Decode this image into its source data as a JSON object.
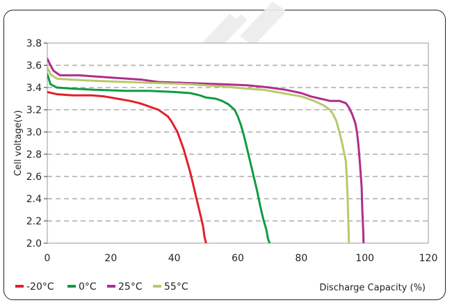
{
  "chart_data": {
    "type": "line",
    "title": "",
    "xlabel": "Discharge Capacity (%)",
    "ylabel": "Cell voltage(v)",
    "xlim": [
      0,
      120
    ],
    "ylim": [
      2.0,
      3.8
    ],
    "x_ticks": [
      "0",
      "20",
      "40",
      "60",
      "80",
      "100",
      "120"
    ],
    "y_ticks": [
      "2.0",
      "2.2",
      "2.4",
      "2.6",
      "2.8",
      "3.0",
      "3.2",
      "3.4",
      "3.6",
      "3.8"
    ],
    "grid": "horizontal-dashed",
    "legend_position": "bottom-left",
    "series": [
      {
        "name": "-20°C",
        "color": "#e0202a",
        "points": [
          [
            0,
            3.36
          ],
          [
            3,
            3.34
          ],
          [
            8,
            3.33
          ],
          [
            14,
            3.33
          ],
          [
            18,
            3.32
          ],
          [
            22,
            3.3
          ],
          [
            26,
            3.28
          ],
          [
            29,
            3.26
          ],
          [
            31,
            3.24
          ],
          [
            33,
            3.22
          ],
          [
            35,
            3.2
          ],
          [
            36,
            3.18
          ],
          [
            38,
            3.14
          ],
          [
            39,
            3.1
          ],
          [
            40,
            3.05
          ],
          [
            41,
            3.0
          ],
          [
            42,
            2.92
          ],
          [
            43,
            2.84
          ],
          [
            44,
            2.74
          ],
          [
            45,
            2.64
          ],
          [
            46,
            2.52
          ],
          [
            47,
            2.4
          ],
          [
            48,
            2.28
          ],
          [
            49,
            2.16
          ],
          [
            49.5,
            2.06
          ],
          [
            50,
            2.0
          ]
        ]
      },
      {
        "name": "0°C",
        "color": "#0f9a45",
        "points": [
          [
            0,
            3.52
          ],
          [
            1,
            3.43
          ],
          [
            3,
            3.4
          ],
          [
            8,
            3.39
          ],
          [
            15,
            3.38
          ],
          [
            25,
            3.37
          ],
          [
            32,
            3.37
          ],
          [
            40,
            3.36
          ],
          [
            45,
            3.35
          ],
          [
            48,
            3.33
          ],
          [
            50,
            3.31
          ],
          [
            53,
            3.3
          ],
          [
            55,
            3.28
          ],
          [
            57,
            3.25
          ],
          [
            59,
            3.2
          ],
          [
            60,
            3.14
          ],
          [
            61,
            3.06
          ],
          [
            62,
            2.96
          ],
          [
            63,
            2.84
          ],
          [
            64,
            2.72
          ],
          [
            65,
            2.6
          ],
          [
            66,
            2.48
          ],
          [
            67,
            2.34
          ],
          [
            68,
            2.22
          ],
          [
            69,
            2.12
          ],
          [
            69.5,
            2.04
          ],
          [
            70,
            2.0
          ]
        ]
      },
      {
        "name": "25°C",
        "color": "#b02c8c",
        "points": [
          [
            0,
            3.66
          ],
          [
            1,
            3.6
          ],
          [
            2,
            3.55
          ],
          [
            4,
            3.51
          ],
          [
            10,
            3.51
          ],
          [
            20,
            3.49
          ],
          [
            30,
            3.47
          ],
          [
            35,
            3.45
          ],
          [
            45,
            3.44
          ],
          [
            55,
            3.43
          ],
          [
            63,
            3.42
          ],
          [
            70,
            3.4
          ],
          [
            75,
            3.38
          ],
          [
            80,
            3.35
          ],
          [
            83,
            3.32
          ],
          [
            86,
            3.3
          ],
          [
            89,
            3.28
          ],
          [
            92,
            3.28
          ],
          [
            94,
            3.26
          ],
          [
            95,
            3.22
          ],
          [
            96,
            3.16
          ],
          [
            97,
            3.08
          ],
          [
            97.5,
            3.0
          ],
          [
            98,
            2.88
          ],
          [
            98.5,
            2.7
          ],
          [
            99,
            2.5
          ],
          [
            99.2,
            2.3
          ],
          [
            99.5,
            2.1
          ],
          [
            99.6,
            2.0
          ]
        ]
      },
      {
        "name": "55°C",
        "color": "#b8c96a",
        "points": [
          [
            0,
            3.58
          ],
          [
            1,
            3.52
          ],
          [
            3,
            3.48
          ],
          [
            8,
            3.47
          ],
          [
            15,
            3.46
          ],
          [
            25,
            3.45
          ],
          [
            35,
            3.44
          ],
          [
            45,
            3.43
          ],
          [
            55,
            3.41
          ],
          [
            63,
            3.39
          ],
          [
            68,
            3.38
          ],
          [
            72,
            3.36
          ],
          [
            76,
            3.34
          ],
          [
            80,
            3.32
          ],
          [
            84,
            3.28
          ],
          [
            87,
            3.24
          ],
          [
            89,
            3.2
          ],
          [
            90,
            3.16
          ],
          [
            91,
            3.1
          ],
          [
            92,
            3.0
          ],
          [
            93,
            2.88
          ],
          [
            94,
            2.74
          ],
          [
            94.3,
            2.6
          ],
          [
            94.6,
            2.4
          ],
          [
            94.8,
            2.2
          ],
          [
            95,
            2.0
          ]
        ]
      }
    ]
  }
}
